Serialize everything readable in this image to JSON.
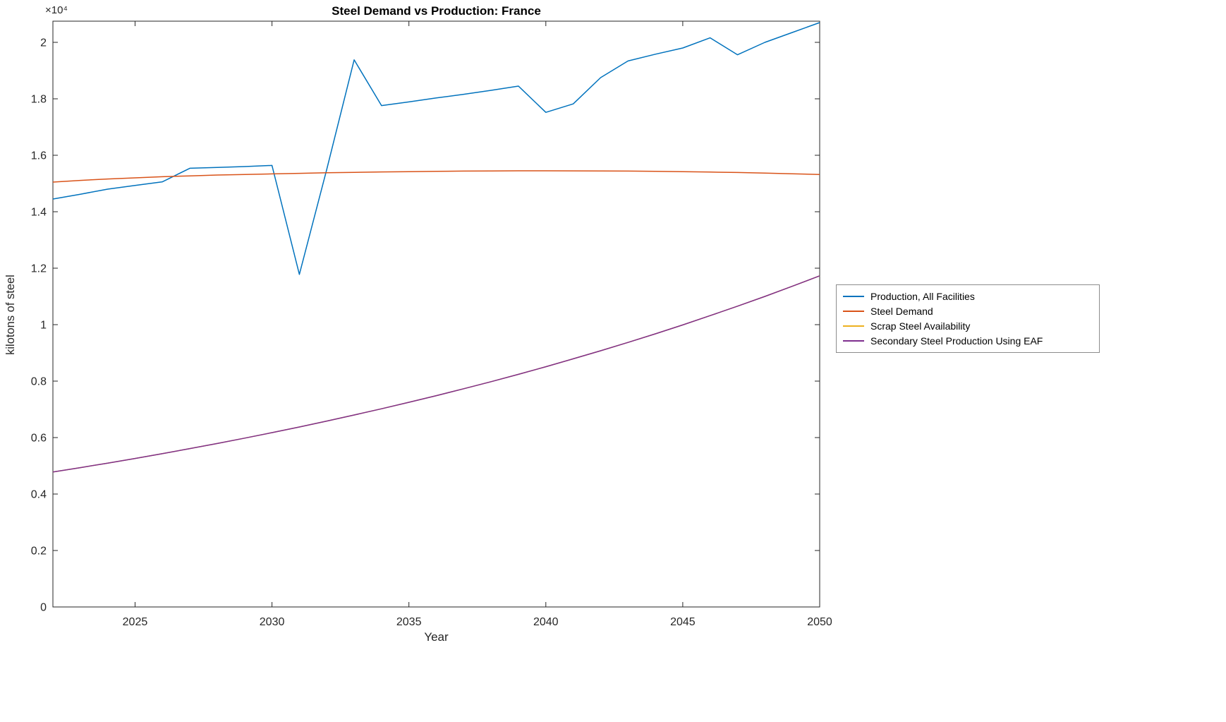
{
  "figure": {
    "background": "#ffffff",
    "axis_color": "#262626"
  },
  "chart_data": {
    "type": "line",
    "title": "Steel Demand vs Production: France",
    "xlabel": "Year",
    "ylabel": "kilotons of steel",
    "y_multiplier": "×10⁴",
    "grid": false,
    "legend_position": "right-outside",
    "xlim": [
      2022,
      2050
    ],
    "ylim": [
      0,
      20750
    ],
    "xticks": [
      2025,
      2030,
      2035,
      2040,
      2045,
      2050
    ],
    "yticks": [
      0,
      2000,
      4000,
      6000,
      8000,
      10000,
      12000,
      14000,
      16000,
      18000,
      20000
    ],
    "ytick_labels": [
      "0",
      "0.2",
      "0.4",
      "0.6",
      "0.8",
      "1",
      "1.2",
      "1.4",
      "1.6",
      "1.8",
      "2"
    ],
    "x": [
      2022,
      2023,
      2024,
      2025,
      2026,
      2027,
      2028,
      2029,
      2030,
      2031,
      2032,
      2033,
      2034,
      2035,
      2036,
      2037,
      2038,
      2039,
      2040,
      2041,
      2042,
      2043,
      2044,
      2045,
      2046,
      2047,
      2048,
      2049,
      2050
    ],
    "series": [
      {
        "name": "Production, All Facilities",
        "color": "#0072BD",
        "values": [
          14450,
          14620,
          14800,
          14930,
          15060,
          15540,
          15570,
          15600,
          15640,
          11780,
          15500,
          19380,
          17760,
          17890,
          18030,
          18160,
          18300,
          18450,
          17520,
          17820,
          18750,
          19340,
          19580,
          19800,
          20160,
          19560,
          20000,
          20350,
          20700
        ]
      },
      {
        "name": "Steel Demand",
        "color": "#D95319",
        "values": [
          15050,
          15110,
          15160,
          15200,
          15240,
          15270,
          15300,
          15320,
          15340,
          15360,
          15380,
          15395,
          15410,
          15420,
          15430,
          15440,
          15445,
          15450,
          15450,
          15448,
          15445,
          15440,
          15430,
          15420,
          15405,
          15390,
          15370,
          15345,
          15320
        ]
      },
      {
        "name": "Scrap Steel Availability",
        "color": "#EDB120",
        "values": [
          4780,
          4935,
          5095,
          5260,
          5430,
          5610,
          5790,
          5980,
          6175,
          6375,
          6585,
          6800,
          7020,
          7250,
          7485,
          7730,
          7980,
          8240,
          8510,
          8790,
          9075,
          9370,
          9675,
          9990,
          10320,
          10655,
          11000,
          11360,
          11730
        ]
      },
      {
        "name": "Secondary Steel Production Using EAF",
        "color": "#7E2F8E",
        "values": [
          4780,
          4935,
          5095,
          5260,
          5430,
          5610,
          5790,
          5980,
          6175,
          6375,
          6585,
          6800,
          7020,
          7250,
          7485,
          7730,
          7980,
          8240,
          8510,
          8790,
          9075,
          9370,
          9675,
          9990,
          10320,
          10655,
          11000,
          11360,
          11730
        ]
      }
    ]
  }
}
